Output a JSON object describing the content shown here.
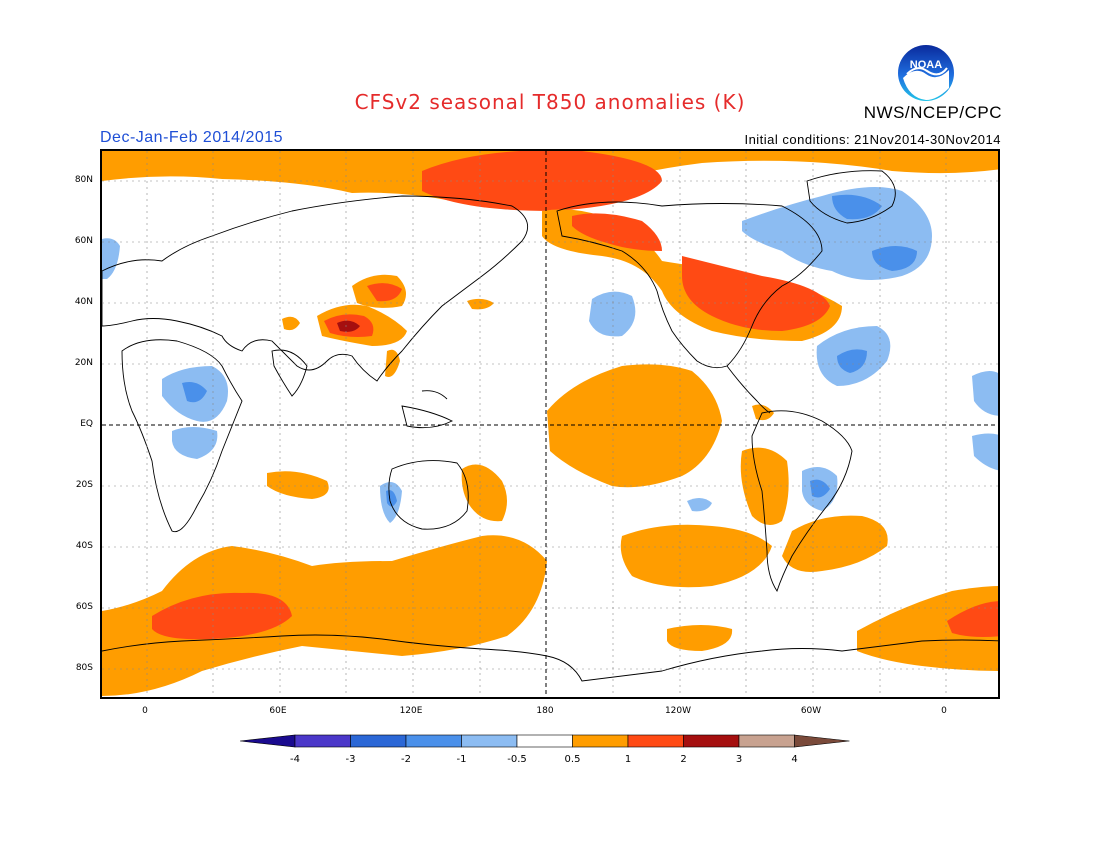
{
  "header": {
    "title": "CFSv2 seasonal T850 anomalies (K)",
    "period": "Dec-Jan-Feb 2014/2015",
    "initial_conditions": "Initial conditions: 21Nov2014-30Nov2014",
    "agency": "NWS/NCEP/CPC",
    "logo_text": "NOAA"
  },
  "map": {
    "projection": "cylindrical equidistant",
    "lat_ticks": [
      "80N",
      "60N",
      "40N",
      "20N",
      "EQ",
      "20S",
      "40S",
      "60S",
      "80S"
    ],
    "lon_ticks": [
      "0",
      "60E",
      "120E",
      "180",
      "120W",
      "60W",
      "0"
    ],
    "reference_lines": [
      "EQ",
      "180"
    ]
  },
  "legend": {
    "levels": [
      "-4",
      "-3",
      "-2",
      "-1",
      "-0.5",
      "0.5",
      "1",
      "2",
      "3",
      "4"
    ],
    "colors": [
      "#1a0a8f",
      "#4b37c9",
      "#2b67d6",
      "#4a90ea",
      "#8cbcf2",
      "#ffffff",
      "#ff9d00",
      "#ff4a14",
      "#a50f0f",
      "#c8a290",
      "#7a4a3a"
    ]
  }
}
